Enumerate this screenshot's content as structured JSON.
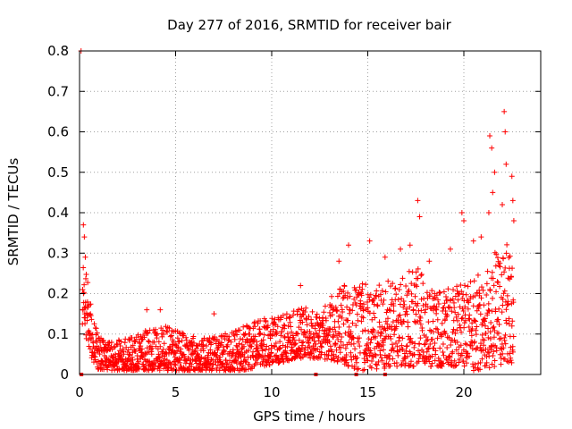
{
  "chart_data": {
    "type": "scatter",
    "title": "Day 277 of 2016, SRMTID for receiver bair",
    "xlabel": "GPS time / hours",
    "ylabel": "SRMTID / TECUs",
    "xlim": [
      0,
      24
    ],
    "ylim": [
      0,
      0.8
    ],
    "x_ticks": [
      0,
      5,
      10,
      15,
      20
    ],
    "x_tick_labels": [
      "0",
      "5",
      "10",
      "15",
      "20"
    ],
    "y_ticks": [
      0,
      0.1,
      0.2,
      0.3,
      0.4,
      0.5,
      0.6,
      0.7,
      0.8
    ],
    "y_tick_labels": [
      "0",
      "0.1",
      "0.2",
      "0.3",
      "0.4",
      "0.5",
      "0.6",
      "0.7",
      "0.8"
    ],
    "grid": true,
    "marker": "plus",
    "series_color": "#ff0000",
    "gap_markers_x": [
      0.1,
      12.3,
      14.4,
      15.9
    ],
    "envelope": {
      "x": [
        0,
        0.2,
        0.4,
        0.7,
        1.0,
        1.5,
        2.5,
        3.5,
        4.5,
        5.5,
        6.5,
        7.5,
        8.5,
        9.5,
        10.5,
        11.5,
        12.5,
        13.5,
        14.5,
        15.5,
        16.5,
        17.5,
        18.5,
        19.5,
        20.5,
        21.0,
        21.5,
        22.0,
        22.6
      ],
      "low": [
        0.02,
        0.12,
        0.08,
        0.03,
        0.01,
        0.01,
        0.01,
        0.01,
        0.01,
        0.01,
        0.01,
        0.01,
        0.01,
        0.02,
        0.03,
        0.04,
        0.04,
        0.03,
        0.01,
        0.01,
        0.02,
        0.02,
        0.02,
        0.02,
        0.01,
        0.01,
        0.02,
        0.02,
        0.03
      ],
      "high": [
        0.05,
        0.28,
        0.24,
        0.14,
        0.1,
        0.08,
        0.09,
        0.11,
        0.12,
        0.1,
        0.09,
        0.1,
        0.12,
        0.14,
        0.15,
        0.17,
        0.16,
        0.22,
        0.23,
        0.22,
        0.24,
        0.27,
        0.2,
        0.22,
        0.24,
        0.26,
        0.3,
        0.32,
        0.34
      ]
    },
    "spikes": [
      {
        "x": 0.08,
        "y": 0.8
      },
      {
        "x": 0.2,
        "y": 0.37
      },
      {
        "x": 0.25,
        "y": 0.34
      },
      {
        "x": 0.3,
        "y": 0.29
      },
      {
        "x": 3.5,
        "y": 0.16
      },
      {
        "x": 4.2,
        "y": 0.16
      },
      {
        "x": 7.0,
        "y": 0.15
      },
      {
        "x": 11.5,
        "y": 0.22
      },
      {
        "x": 13.5,
        "y": 0.28
      },
      {
        "x": 14.0,
        "y": 0.32
      },
      {
        "x": 15.1,
        "y": 0.33
      },
      {
        "x": 15.9,
        "y": 0.29
      },
      {
        "x": 16.7,
        "y": 0.31
      },
      {
        "x": 17.2,
        "y": 0.32
      },
      {
        "x": 17.6,
        "y": 0.43
      },
      {
        "x": 17.7,
        "y": 0.39
      },
      {
        "x": 18.2,
        "y": 0.28
      },
      {
        "x": 19.3,
        "y": 0.31
      },
      {
        "x": 19.9,
        "y": 0.4
      },
      {
        "x": 20.0,
        "y": 0.38
      },
      {
        "x": 20.5,
        "y": 0.33
      },
      {
        "x": 20.9,
        "y": 0.34
      },
      {
        "x": 21.3,
        "y": 0.4
      },
      {
        "x": 21.35,
        "y": 0.59
      },
      {
        "x": 21.45,
        "y": 0.56
      },
      {
        "x": 21.5,
        "y": 0.45
      },
      {
        "x": 21.6,
        "y": 0.5
      },
      {
        "x": 22.0,
        "y": 0.42
      },
      {
        "x": 22.1,
        "y": 0.65
      },
      {
        "x": 22.15,
        "y": 0.6
      },
      {
        "x": 22.2,
        "y": 0.52
      },
      {
        "x": 22.5,
        "y": 0.49
      },
      {
        "x": 22.55,
        "y": 0.43
      },
      {
        "x": 22.6,
        "y": 0.38
      }
    ]
  }
}
